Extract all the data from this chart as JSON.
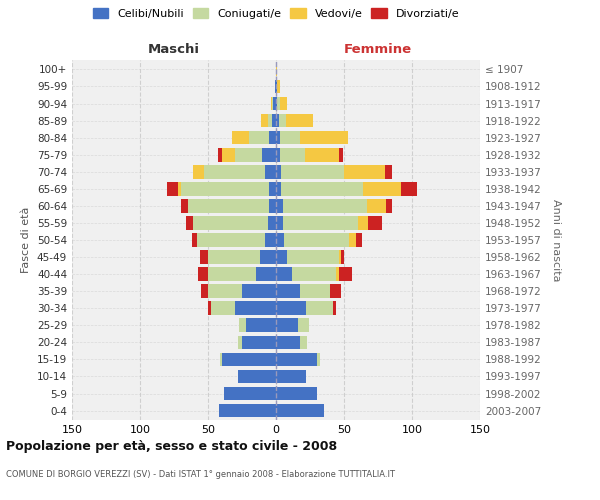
{
  "age_groups": [
    "0-4",
    "5-9",
    "10-14",
    "15-19",
    "20-24",
    "25-29",
    "30-34",
    "35-39",
    "40-44",
    "45-49",
    "50-54",
    "55-59",
    "60-64",
    "65-69",
    "70-74",
    "75-79",
    "80-84",
    "85-89",
    "90-94",
    "95-99",
    "100+"
  ],
  "birth_years": [
    "2003-2007",
    "1998-2002",
    "1993-1997",
    "1988-1992",
    "1983-1987",
    "1978-1982",
    "1973-1977",
    "1968-1972",
    "1963-1967",
    "1958-1962",
    "1953-1957",
    "1948-1952",
    "1943-1947",
    "1938-1942",
    "1933-1937",
    "1928-1932",
    "1923-1927",
    "1918-1922",
    "1913-1917",
    "1908-1912",
    "≤ 1907"
  ],
  "maschi": {
    "celibi": [
      42,
      38,
      28,
      40,
      25,
      22,
      30,
      25,
      15,
      12,
      8,
      6,
      5,
      5,
      8,
      10,
      5,
      3,
      2,
      1,
      0
    ],
    "coniugati": [
      0,
      0,
      0,
      1,
      3,
      5,
      18,
      25,
      35,
      38,
      50,
      55,
      60,
      65,
      45,
      20,
      15,
      3,
      1,
      0,
      0
    ],
    "vedovi": [
      0,
      0,
      0,
      0,
      0,
      0,
      0,
      0,
      0,
      0,
      0,
      0,
      0,
      2,
      8,
      10,
      12,
      5,
      1,
      0,
      0
    ],
    "divorziati": [
      0,
      0,
      0,
      0,
      0,
      0,
      2,
      5,
      7,
      6,
      4,
      5,
      5,
      8,
      0,
      3,
      0,
      0,
      0,
      0,
      0
    ]
  },
  "femmine": {
    "nubili": [
      35,
      30,
      22,
      30,
      18,
      16,
      22,
      18,
      12,
      8,
      6,
      5,
      5,
      4,
      4,
      3,
      3,
      2,
      1,
      1,
      0
    ],
    "coniugate": [
      0,
      0,
      0,
      2,
      5,
      8,
      20,
      22,
      32,
      38,
      48,
      55,
      62,
      60,
      46,
      18,
      15,
      5,
      2,
      0,
      0
    ],
    "vedove": [
      0,
      0,
      0,
      0,
      0,
      0,
      0,
      0,
      2,
      2,
      5,
      8,
      14,
      28,
      30,
      25,
      35,
      20,
      5,
      2,
      1
    ],
    "divorziate": [
      0,
      0,
      0,
      0,
      0,
      0,
      2,
      8,
      10,
      2,
      4,
      10,
      4,
      12,
      5,
      3,
      0,
      0,
      0,
      0,
      0
    ]
  },
  "colors": {
    "celibi": "#4472c4",
    "coniugati": "#c5d9a0",
    "vedovi": "#f5c842",
    "divorziati": "#cc2222"
  },
  "title": "Popolazione per età, sesso e stato civile - 2008",
  "subtitle": "COMUNE DI BORGIO VEREZZI (SV) - Dati ISTAT 1° gennaio 2008 - Elaborazione TUTTITALIA.IT",
  "ylabel_left": "Fasce di età",
  "ylabel_right": "Anni di nascita",
  "xlabel_maschi": "Maschi",
  "xlabel_femmine": "Femmine",
  "xlim": 150,
  "xticks": [
    -150,
    -100,
    -50,
    0,
    50,
    100,
    150
  ],
  "xticklabels": [
    "150",
    "100",
    "50",
    "0",
    "50",
    "100",
    "150"
  ],
  "legend_labels": [
    "Celibi/Nubili",
    "Coniugati/e",
    "Vedovi/e",
    "Divorziati/e"
  ],
  "background_color": "#ffffff",
  "plot_bg_color": "#f0f0f0",
  "grid_color": "#cccccc"
}
